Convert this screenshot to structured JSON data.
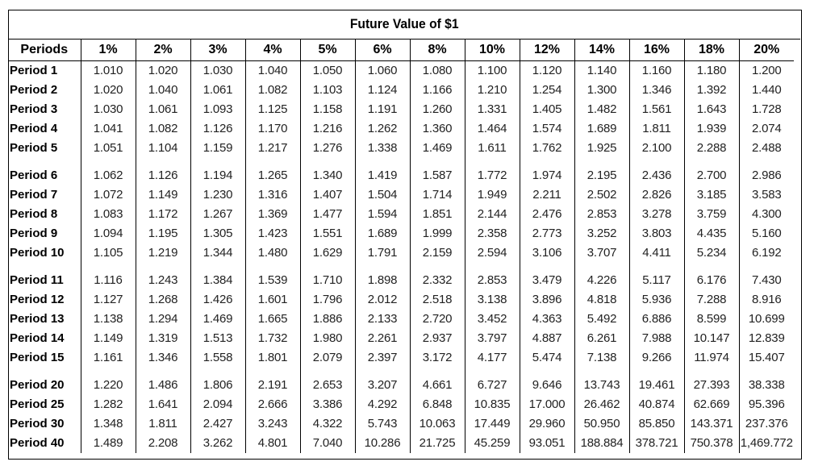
{
  "title": "Future Value of $1",
  "headers": [
    "Periods",
    "1%",
    "2%",
    "3%",
    "4%",
    "5%",
    "6%",
    "8%",
    "10%",
    "12%",
    "14%",
    "16%",
    "18%",
    "20%"
  ],
  "groups": [
    [
      {
        "label": "Period 1",
        "values": [
          "1.010",
          "1.020",
          "1.030",
          "1.040",
          "1.050",
          "1.060",
          "1.080",
          "1.100",
          "1.120",
          "1.140",
          "1.160",
          "1.180",
          "1.200"
        ]
      },
      {
        "label": "Period 2",
        "values": [
          "1.020",
          "1.040",
          "1.061",
          "1.082",
          "1.103",
          "1.124",
          "1.166",
          "1.210",
          "1.254",
          "1.300",
          "1.346",
          "1.392",
          "1.440"
        ]
      },
      {
        "label": "Period 3",
        "values": [
          "1.030",
          "1.061",
          "1.093",
          "1.125",
          "1.158",
          "1.191",
          "1.260",
          "1.331",
          "1.405",
          "1.482",
          "1.561",
          "1.643",
          "1.728"
        ]
      },
      {
        "label": "Period 4",
        "values": [
          "1.041",
          "1.082",
          "1.126",
          "1.170",
          "1.216",
          "1.262",
          "1.360",
          "1.464",
          "1.574",
          "1.689",
          "1.811",
          "1.939",
          "2.074"
        ]
      },
      {
        "label": "Period 5",
        "values": [
          "1.051",
          "1.104",
          "1.159",
          "1.217",
          "1.276",
          "1.338",
          "1.469",
          "1.611",
          "1.762",
          "1.925",
          "2.100",
          "2.288",
          "2.488"
        ]
      }
    ],
    [
      {
        "label": "Period 6",
        "values": [
          "1.062",
          "1.126",
          "1.194",
          "1.265",
          "1.340",
          "1.419",
          "1.587",
          "1.772",
          "1.974",
          "2.195",
          "2.436",
          "2.700",
          "2.986"
        ]
      },
      {
        "label": "Period 7",
        "values": [
          "1.072",
          "1.149",
          "1.230",
          "1.316",
          "1.407",
          "1.504",
          "1.714",
          "1.949",
          "2.211",
          "2.502",
          "2.826",
          "3.185",
          "3.583"
        ]
      },
      {
        "label": "Period 8",
        "values": [
          "1.083",
          "1.172",
          "1.267",
          "1.369",
          "1.477",
          "1.594",
          "1.851",
          "2.144",
          "2.476",
          "2.853",
          "3.278",
          "3.759",
          "4.300"
        ]
      },
      {
        "label": "Period 9",
        "values": [
          "1.094",
          "1.195",
          "1.305",
          "1.423",
          "1.551",
          "1.689",
          "1.999",
          "2.358",
          "2.773",
          "3.252",
          "3.803",
          "4.435",
          "5.160"
        ]
      },
      {
        "label": "Period 10",
        "values": [
          "1.105",
          "1.219",
          "1.344",
          "1.480",
          "1.629",
          "1.791",
          "2.159",
          "2.594",
          "3.106",
          "3.707",
          "4.411",
          "5.234",
          "6.192"
        ]
      }
    ],
    [
      {
        "label": "Period 11",
        "values": [
          "1.116",
          "1.243",
          "1.384",
          "1.539",
          "1.710",
          "1.898",
          "2.332",
          "2.853",
          "3.479",
          "4.226",
          "5.117",
          "6.176",
          "7.430"
        ]
      },
      {
        "label": "Period 12",
        "values": [
          "1.127",
          "1.268",
          "1.426",
          "1.601",
          "1.796",
          "2.012",
          "2.518",
          "3.138",
          "3.896",
          "4.818",
          "5.936",
          "7.288",
          "8.916"
        ]
      },
      {
        "label": "Period 13",
        "values": [
          "1.138",
          "1.294",
          "1.469",
          "1.665",
          "1.886",
          "2.133",
          "2.720",
          "3.452",
          "4.363",
          "5.492",
          "6.886",
          "8.599",
          "10.699"
        ]
      },
      {
        "label": "Period 14",
        "values": [
          "1.149",
          "1.319",
          "1.513",
          "1.732",
          "1.980",
          "2.261",
          "2.937",
          "3.797",
          "4.887",
          "6.261",
          "7.988",
          "10.147",
          "12.839"
        ]
      },
      {
        "label": "Period 15",
        "values": [
          "1.161",
          "1.346",
          "1.558",
          "1.801",
          "2.079",
          "2.397",
          "3.172",
          "4.177",
          "5.474",
          "7.138",
          "9.266",
          "11.974",
          "15.407"
        ]
      }
    ],
    [
      {
        "label": "Period 20",
        "values": [
          "1.220",
          "1.486",
          "1.806",
          "2.191",
          "2.653",
          "3.207",
          "4.661",
          "6.727",
          "9.646",
          "13.743",
          "19.461",
          "27.393",
          "38.338"
        ]
      },
      {
        "label": "Period 25",
        "values": [
          "1.282",
          "1.641",
          "2.094",
          "2.666",
          "3.386",
          "4.292",
          "6.848",
          "10.835",
          "17.000",
          "26.462",
          "40.874",
          "62.669",
          "95.396"
        ]
      },
      {
        "label": "Period 30",
        "values": [
          "1.348",
          "1.811",
          "2.427",
          "3.243",
          "4.322",
          "5.743",
          "10.063",
          "17.449",
          "29.960",
          "50.950",
          "85.850",
          "143.371",
          "237.376"
        ]
      },
      {
        "label": "Period 40",
        "values": [
          "1.489",
          "2.208",
          "3.262",
          "4.801",
          "7.040",
          "10.286",
          "21.725",
          "45.259",
          "93.051",
          "188.884",
          "378.721",
          "750.378",
          "1,469.772"
        ]
      }
    ]
  ]
}
